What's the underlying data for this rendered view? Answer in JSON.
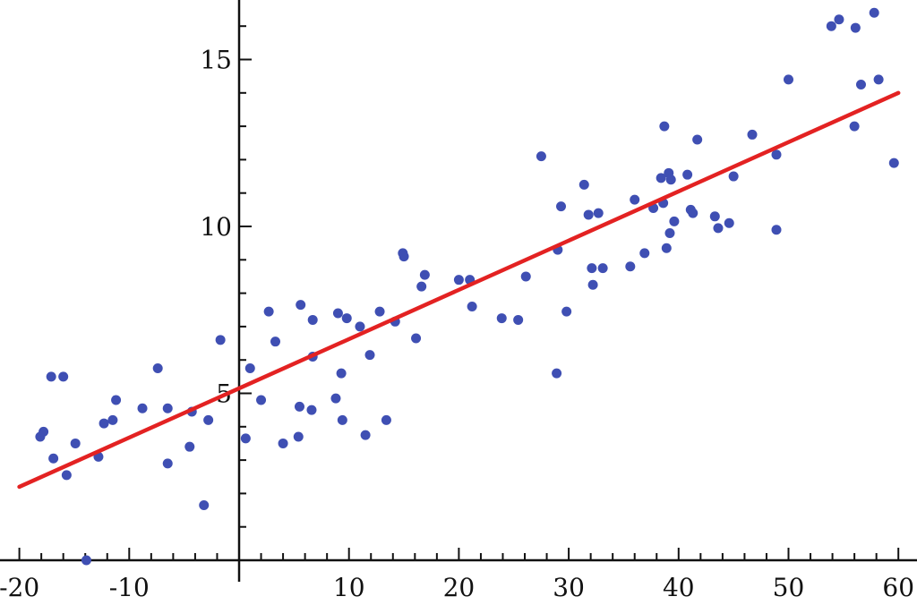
{
  "chart_data": {
    "type": "scatter",
    "title": "",
    "xlabel": "",
    "ylabel": "",
    "xlim": [
      -20.5,
      61
    ],
    "ylim": [
      0,
      16.8
    ],
    "grid": false,
    "x_ticks": [
      -20,
      -10,
      10,
      20,
      30,
      40,
      50,
      60
    ],
    "y_ticks": [
      5,
      10,
      15
    ],
    "x_tick_labels": [
      "-20",
      "-10",
      "10",
      "20",
      "30",
      "40",
      "50",
      "60"
    ],
    "y_tick_labels": [
      "5",
      "10",
      "15"
    ],
    "x_minor_step": 2,
    "y_minor_step": 1,
    "colors": {
      "points": "#3f4fb3",
      "fit_line": "#e32222",
      "axes": "#111111"
    },
    "series": [
      {
        "kind": "scatter",
        "points": [
          [
            -18.1,
            3.7
          ],
          [
            -17.8,
            3.85
          ],
          [
            -17.1,
            5.5
          ],
          [
            -16.9,
            3.05
          ],
          [
            -16.0,
            5.5
          ],
          [
            -15.7,
            2.55
          ],
          [
            -14.9,
            3.5
          ],
          [
            -13.9,
            0.0
          ],
          [
            -12.8,
            3.1
          ],
          [
            -12.3,
            4.1
          ],
          [
            -11.5,
            4.2
          ],
          [
            -11.2,
            4.8
          ],
          [
            -8.8,
            4.55
          ],
          [
            -7.4,
            5.75
          ],
          [
            -6.5,
            4.55
          ],
          [
            -6.5,
            2.9
          ],
          [
            -4.5,
            3.4
          ],
          [
            -4.3,
            4.45
          ],
          [
            -3.2,
            1.65
          ],
          [
            -2.8,
            4.2
          ],
          [
            -1.7,
            6.6
          ],
          [
            0.6,
            3.65
          ],
          [
            1.0,
            5.75
          ],
          [
            2.0,
            4.8
          ],
          [
            2.7,
            7.45
          ],
          [
            3.3,
            6.55
          ],
          [
            4.0,
            3.5
          ],
          [
            5.4,
            3.7
          ],
          [
            5.5,
            4.6
          ],
          [
            5.6,
            7.65
          ],
          [
            6.6,
            4.5
          ],
          [
            6.7,
            6.1
          ],
          [
            6.7,
            7.2
          ],
          [
            8.8,
            4.85
          ],
          [
            9.0,
            7.4
          ],
          [
            9.3,
            5.6
          ],
          [
            9.4,
            4.2
          ],
          [
            9.8,
            7.25
          ],
          [
            11.0,
            7.0
          ],
          [
            11.5,
            3.75
          ],
          [
            11.9,
            6.15
          ],
          [
            12.8,
            7.45
          ],
          [
            13.4,
            4.2
          ],
          [
            14.2,
            7.15
          ],
          [
            14.9,
            9.2
          ],
          [
            15.0,
            9.1
          ],
          [
            16.1,
            6.65
          ],
          [
            16.6,
            8.2
          ],
          [
            16.9,
            8.55
          ],
          [
            20.0,
            8.4
          ],
          [
            21.0,
            8.4
          ],
          [
            21.2,
            7.6
          ],
          [
            23.9,
            7.25
          ],
          [
            25.4,
            7.2
          ],
          [
            26.1,
            8.5
          ],
          [
            27.5,
            12.1
          ],
          [
            28.9,
            5.6
          ],
          [
            29.0,
            9.3
          ],
          [
            29.3,
            10.6
          ],
          [
            29.8,
            7.45
          ],
          [
            31.4,
            11.25
          ],
          [
            31.8,
            10.35
          ],
          [
            32.1,
            8.75
          ],
          [
            32.2,
            8.25
          ],
          [
            32.7,
            10.4
          ],
          [
            33.1,
            8.75
          ],
          [
            35.6,
            8.8
          ],
          [
            36.0,
            10.8
          ],
          [
            36.9,
            9.2
          ],
          [
            37.7,
            10.55
          ],
          [
            38.4,
            11.45
          ],
          [
            38.6,
            10.7
          ],
          [
            38.7,
            13.0
          ],
          [
            38.9,
            9.35
          ],
          [
            39.1,
            11.6
          ],
          [
            39.2,
            9.8
          ],
          [
            39.3,
            11.4
          ],
          [
            39.6,
            10.15
          ],
          [
            40.8,
            11.55
          ],
          [
            41.1,
            10.5
          ],
          [
            41.3,
            10.4
          ],
          [
            41.7,
            12.6
          ],
          [
            43.3,
            10.3
          ],
          [
            43.6,
            9.95
          ],
          [
            44.6,
            10.1
          ],
          [
            45.0,
            11.5
          ],
          [
            46.7,
            12.75
          ],
          [
            48.9,
            12.15
          ],
          [
            48.9,
            9.9
          ],
          [
            50.0,
            14.4
          ],
          [
            53.9,
            16.0
          ],
          [
            54.6,
            16.2
          ],
          [
            56.0,
            13.0
          ],
          [
            56.1,
            15.95
          ],
          [
            56.6,
            14.25
          ],
          [
            57.8,
            16.4
          ],
          [
            58.2,
            14.4
          ],
          [
            59.6,
            11.9
          ]
        ]
      },
      {
        "kind": "line",
        "points": [
          [
            -20,
            2.2
          ],
          [
            60,
            14.0
          ]
        ]
      }
    ]
  }
}
